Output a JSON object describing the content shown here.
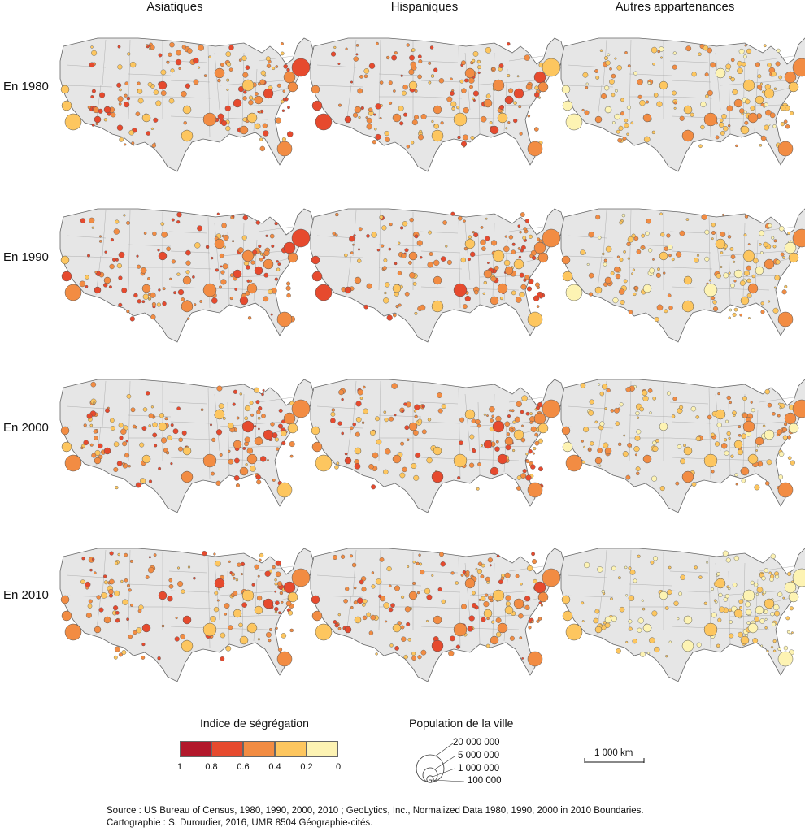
{
  "columns": [
    "Asiatiques",
    "Hispaniques",
    "Autres appartenances"
  ],
  "rows": [
    "En 1980",
    "En 1990",
    "En 2000",
    "En 2010"
  ],
  "legend": {
    "segregation_title": "Indice de ségrégation",
    "classes": [
      {
        "color": "#b2182b",
        "range": [
          0.8,
          1
        ]
      },
      {
        "color": "#e64a2e",
        "range": [
          0.6,
          0.8
        ]
      },
      {
        "color": "#f28c43",
        "range": [
          0.4,
          0.6
        ]
      },
      {
        "color": "#fdc65f",
        "range": [
          0.2,
          0.4
        ]
      },
      {
        "color": "#fdf3b3",
        "range": [
          0,
          0.2
        ]
      }
    ],
    "ticks": [
      "1",
      "0.8",
      "0.6",
      "0.4",
      "0.2",
      "0"
    ],
    "population_title": "Population de la ville",
    "population_values": [
      "20 000 000",
      "5 000 000",
      "1 000 000",
      "100 000"
    ],
    "scale_label": "1 000 km"
  },
  "footer": {
    "source": "Source : US Bureau of Census, 1980, 1990, 2000, 2010 ; GeoLytics, Inc., Normalized Data 1980, 1990, 2000 in 2010 Boundaries.",
    "credit": "Cartographie : S. Duroudier, 2016, UMR 8504 Géographie-cités."
  },
  "colors": {
    "land": "#e6e6e6",
    "border": "#666666",
    "circle_stroke": "#555555"
  }
}
